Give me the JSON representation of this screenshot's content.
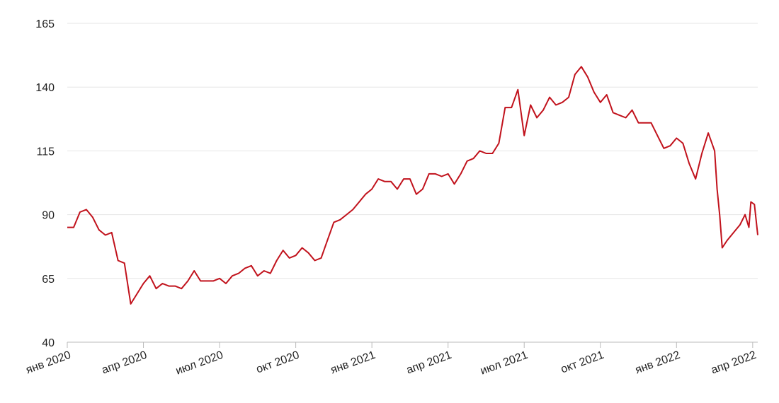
{
  "chart_data": {
    "type": "line",
    "x": [
      0,
      0.25,
      0.5,
      0.75,
      1,
      1.25,
      1.5,
      1.75,
      2,
      2.25,
      2.5,
      2.75,
      3,
      3.25,
      3.5,
      3.75,
      4,
      4.25,
      4.5,
      4.75,
      5,
      5.25,
      5.5,
      5.75,
      6,
      6.25,
      6.5,
      6.75,
      7,
      7.25,
      7.5,
      7.75,
      8,
      8.25,
      8.5,
      8.75,
      9,
      9.25,
      9.5,
      9.75,
      10,
      10.25,
      10.5,
      10.75,
      11,
      11.25,
      11.5,
      11.75,
      12,
      12.25,
      12.5,
      12.75,
      13,
      13.25,
      13.5,
      13.75,
      14,
      14.25,
      14.5,
      14.75,
      15,
      15.25,
      15.5,
      15.75,
      16,
      16.25,
      16.5,
      16.75,
      17,
      17.25,
      17.5,
      17.75,
      18,
      18.25,
      18.5,
      18.75,
      19,
      19.25,
      19.5,
      19.75,
      20,
      20.25,
      20.5,
      20.75,
      21,
      21.25,
      21.5,
      21.75,
      22,
      22.25,
      22.5,
      22.75,
      23,
      23.25,
      23.5,
      23.75,
      24,
      24.25,
      24.5,
      24.75,
      25,
      25.25,
      25.5,
      25.6,
      25.7,
      25.8,
      26,
      26.25,
      26.5,
      26.7,
      26.85,
      26.93,
      27.07,
      27.2
    ],
    "series": [
      {
        "color": "#c1121c",
        "values": [
          85,
          85,
          91,
          92,
          89,
          84,
          82,
          83,
          72,
          71,
          55,
          59,
          63,
          66,
          61,
          63,
          62,
          62,
          61,
          64,
          68,
          64,
          64,
          64,
          65,
          63,
          66,
          67,
          69,
          70,
          66,
          68,
          67,
          72,
          76,
          73,
          74,
          77,
          75,
          72,
          73,
          80,
          87,
          88,
          90,
          92,
          95,
          98,
          100,
          104,
          103,
          103,
          100,
          104,
          104,
          98,
          100,
          106,
          106,
          105,
          106,
          102,
          106,
          111,
          112,
          115,
          114,
          114,
          118,
          132,
          132,
          139,
          121,
          133,
          128,
          131,
          136,
          133,
          134,
          136,
          145,
          148,
          144,
          138,
          134,
          137,
          130,
          129,
          128,
          131,
          126,
          126,
          126,
          121,
          116,
          117,
          120,
          118,
          110,
          104,
          114,
          122,
          115,
          100,
          90,
          77,
          80,
          83,
          86,
          90,
          85,
          95,
          94,
          82
        ]
      }
    ],
    "xlim": [
      0,
      27.2
    ],
    "xticks": [
      {
        "value": 0,
        "label": "янв 2020"
      },
      {
        "value": 3,
        "label": "апр 2020"
      },
      {
        "value": 6,
        "label": "июл 2020"
      },
      {
        "value": 9,
        "label": "окт 2020"
      },
      {
        "value": 12,
        "label": "янв 2021"
      },
      {
        "value": 15,
        "label": "апр 2021"
      },
      {
        "value": 18,
        "label": "июл 2021"
      },
      {
        "value": 21,
        "label": "окт 2021"
      },
      {
        "value": 24,
        "label": "янв 2022"
      },
      {
        "value": 27,
        "label": "апр 2022"
      }
    ],
    "ylim": [
      40,
      165
    ],
    "yticks": [
      40,
      65,
      90,
      115,
      140,
      165
    ],
    "grid": true
  }
}
